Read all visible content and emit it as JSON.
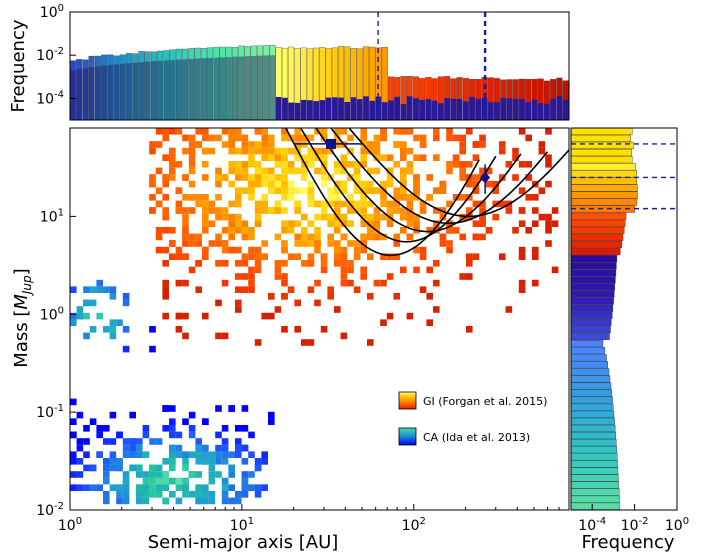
{
  "chart_data": [
    {
      "panel": "main",
      "type": "heatmap",
      "xlabel": "Semi-major axis [AU]",
      "ylabel": "Mass [",
      "ylabel_math": "M",
      "ylabel_sub": "Jup",
      "ylabel_close": "]",
      "x_scale": "log",
      "y_scale": "log",
      "xlim": [
        1,
        800
      ],
      "ylim": [
        0.01,
        80
      ],
      "x_ticks": [
        "10^0",
        "10^1",
        "10^2"
      ],
      "y_ticks": [
        "10^-2",
        "10^-1",
        "10^0",
        "10^1"
      ],
      "legend_placement": "lower-right",
      "series": [
        {
          "name": "GI (Forgan et al. 2015)",
          "colormap": [
            "#d62000",
            "#ff4a00",
            "#ff8c00",
            "#ffcc00",
            "#ffff66"
          ],
          "clouds": [
            {
              "x": [
                3,
                700
              ],
              "y": [
                0.5,
                80
              ],
              "peak_x": 25,
              "peak_y": 20
            }
          ]
        },
        {
          "name": "CA (Ida et al. 2013)",
          "colormap": [
            "#0000ff",
            "#2050ff",
            "#20a0d0",
            "#20c0a0",
            "#60e0b0"
          ],
          "clouds": [
            {
              "x": [
                1,
                15
              ],
              "y": [
                0.01,
                0.12
              ],
              "peak_x": 4,
              "peak_y": 0.02
            },
            {
              "x": [
                1,
                3
              ],
              "y": [
                0.3,
                2
              ],
              "peak_x": 1.5,
              "peak_y": 1
            }
          ]
        }
      ],
      "observed_points": [
        {
          "x": 33,
          "y": 55,
          "xerr": [
            20,
            50
          ],
          "marker": "square"
        },
        {
          "x": 260,
          "y": 25,
          "yerr": [
            17,
            34
          ],
          "marker": "diamond"
        }
      ],
      "contours": [
        {
          "x_start": 18,
          "x_end": 240
        },
        {
          "x_start": 22,
          "x_end": 300
        },
        {
          "x_start": 27,
          "x_end": 420
        },
        {
          "x_start": 33,
          "x_end": 600
        },
        {
          "x_start": 42,
          "x_end": 800
        }
      ]
    },
    {
      "panel": "top",
      "type": "bar",
      "ylabel": "Frequency",
      "x_scale": "log",
      "y_scale": "log",
      "xlim": [
        1,
        800
      ],
      "ylim": [
        1e-05,
        1
      ],
      "y_ticks": [
        "10^-4",
        "10^-2",
        "10^0"
      ],
      "reference_lines_x": [
        62,
        260
      ]
    },
    {
      "panel": "right",
      "type": "bar",
      "orientation": "horizontal",
      "xlabel": "Frequency",
      "x_scale": "log",
      "xlim": [
        1e-05,
        1
      ],
      "y_scale": "log",
      "ylim": [
        0.01,
        80
      ],
      "x_ticks": [
        "10^-4",
        "10^-2",
        "10^0"
      ],
      "reference_lines_y": [
        55,
        25,
        12
      ]
    }
  ]
}
